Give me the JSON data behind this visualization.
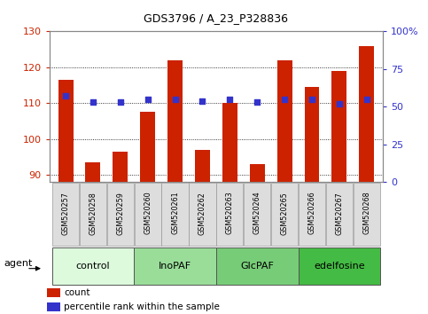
{
  "title": "GDS3796 / A_23_P328836",
  "categories": [
    "GSM520257",
    "GSM520258",
    "GSM520259",
    "GSM520260",
    "GSM520261",
    "GSM520262",
    "GSM520263",
    "GSM520264",
    "GSM520265",
    "GSM520266",
    "GSM520267",
    "GSM520268"
  ],
  "bar_values": [
    116.5,
    93.5,
    96.5,
    107.5,
    122.0,
    97.0,
    110.0,
    93.0,
    122.0,
    114.5,
    119.0,
    126.0
  ],
  "percentile_values": [
    57,
    53,
    53,
    55,
    55,
    54,
    55,
    53,
    55,
    55,
    52,
    55
  ],
  "bar_color": "#cc2200",
  "percentile_color": "#3333cc",
  "ylim_left": [
    88,
    130
  ],
  "ylim_right": [
    0,
    100
  ],
  "yticks_left": [
    90,
    100,
    110,
    120,
    130
  ],
  "yticks_right": [
    0,
    25,
    50,
    75,
    100
  ],
  "yticklabels_right": [
    "0",
    "25",
    "50",
    "75",
    "100%"
  ],
  "groups": [
    {
      "label": "control",
      "indices": [
        0,
        1,
        2
      ],
      "color": "#ddfadd"
    },
    {
      "label": "InoPAF",
      "indices": [
        3,
        4,
        5
      ],
      "color": "#99dd99"
    },
    {
      "label": "GlcPAF",
      "indices": [
        6,
        7,
        8
      ],
      "color": "#77cc77"
    },
    {
      "label": "edelfosine",
      "indices": [
        9,
        10,
        11
      ],
      "color": "#44bb44"
    }
  ],
  "agent_label": "agent",
  "legend_count_label": "count",
  "legend_percentile_label": "percentile rank within the sample",
  "bar_width": 0.55,
  "grid_color": "#000000",
  "background_color": "#ffffff",
  "plot_bg_color": "#ffffff",
  "tick_label_color_left": "#cc2200",
  "tick_label_color_right": "#3333cc",
  "header_bg": "#dddddd",
  "header_edge": "#999999"
}
